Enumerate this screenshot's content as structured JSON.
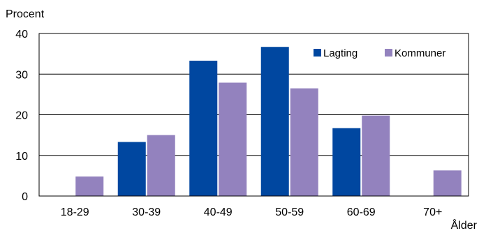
{
  "chart_data": {
    "type": "bar",
    "title": "",
    "ylabel": "Procent",
    "xlabel": "Ålder",
    "categories": [
      "18-29",
      "30-39",
      "40-49",
      "50-59",
      "60-69",
      "70+"
    ],
    "series": [
      {
        "name": "Lagting",
        "values": [
          0,
          13.3,
          33.3,
          36.7,
          16.7,
          0
        ],
        "color": "#0047A0"
      },
      {
        "name": "Kommuner",
        "values": [
          4.8,
          15.0,
          27.9,
          26.5,
          19.8,
          6.3
        ],
        "color": "#9382BE"
      }
    ],
    "ylim": [
      0,
      40
    ],
    "yticks": [
      "0",
      "10",
      "20",
      "30",
      "40"
    ],
    "grid": true,
    "legend_position": "top-right"
  }
}
